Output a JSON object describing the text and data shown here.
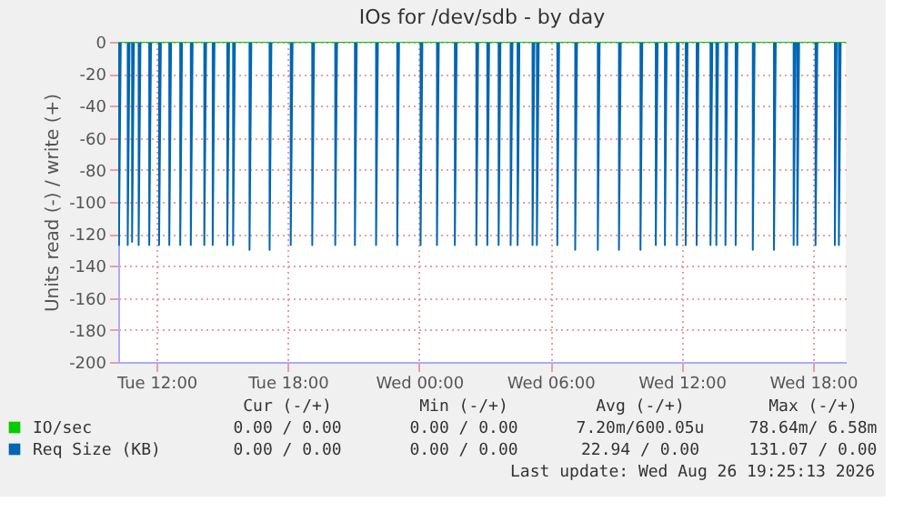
{
  "chart_data": {
    "type": "line",
    "title": "IOs for /dev/sdb - by day",
    "ylabel": "Units read (-) / write (+)",
    "xlim": [
      "2026-08-25T10:15",
      "2026-08-26T19:30"
    ],
    "xticks": [
      {
        "value": "2026-08-25T12:00",
        "label": "Tue 12:00"
      },
      {
        "value": "2026-08-25T18:00",
        "label": "Tue 18:00"
      },
      {
        "value": "2026-08-26T00:00",
        "label": "Wed 00:00"
      },
      {
        "value": "2026-08-26T06:00",
        "label": "Wed 06:00"
      },
      {
        "value": "2026-08-26T12:00",
        "label": "Wed 12:00"
      },
      {
        "value": "2026-08-26T18:00",
        "label": "Wed 18:00"
      }
    ],
    "ylim": [
      -200,
      0
    ],
    "yticks": [
      -200,
      -180,
      -160,
      -140,
      -120,
      -100,
      -80,
      -60,
      -40,
      -20,
      0
    ],
    "grid": true,
    "legend": "bottom",
    "annotations": [
      "Cur (-/+)",
      "Min (-/+)",
      "Avg (-/+)",
      "Max (-/+)",
      "0.00 / 0.00",
      "0.00 / 0.00",
      "7.20m/600.05u",
      "78.64m/ 6.58m",
      "0.00 / 0.00",
      "0.00 / 0.00",
      "22.94 / 0.00",
      "131.07 / 0.00",
      "Last update: Wed Aug 26 19:25:13 2026"
    ],
    "series": [
      {
        "name": "IO/sec",
        "color": "#00cc00",
        "x": [
          "2026-08-25T10:15",
          "2026-08-26T19:30"
        ],
        "values": [
          0,
          0
        ]
      },
      {
        "name": "Req Size (KB)",
        "color": "#0066b3",
        "x": [
          "2026-08-25T10:15",
          "2026-08-25T10:17",
          "2026-08-25T10:17",
          "2026-08-25T10:22",
          "2026-08-25T10:41",
          "2026-08-25T10:41",
          "2026-08-25T10:46",
          "2026-08-25T10:53",
          "2026-08-25T10:53",
          "2026-08-25T10:58",
          "2026-08-25T11:11",
          "2026-08-25T11:11",
          "2026-08-25T11:16",
          "2026-08-25T11:40",
          "2026-08-25T11:40",
          "2026-08-25T11:45",
          "2026-08-25T12:07",
          "2026-08-25T12:07",
          "2026-08-25T12:12",
          "2026-08-25T12:35",
          "2026-08-25T12:35",
          "2026-08-25T12:40",
          "2026-08-25T13:05",
          "2026-08-25T13:05",
          "2026-08-25T13:10",
          "2026-08-25T13:34",
          "2026-08-25T13:34",
          "2026-08-25T13:39",
          "2026-08-25T14:11",
          "2026-08-25T14:11",
          "2026-08-25T14:16",
          "2026-08-25T14:34",
          "2026-08-25T14:34",
          "2026-08-25T14:39",
          "2026-08-25T15:14",
          "2026-08-25T15:14",
          "2026-08-25T15:19",
          "2026-08-25T15:30",
          "2026-08-25T15:30",
          "2026-08-25T15:35",
          "2026-08-25T16:15",
          "2026-08-25T16:15",
          "2026-08-25T16:20",
          "2026-08-25T17:10",
          "2026-08-25T17:10",
          "2026-08-25T17:15",
          "2026-08-25T18:08",
          "2026-08-25T18:08",
          "2026-08-25T18:13",
          "2026-08-25T19:07",
          "2026-08-25T19:07",
          "2026-08-25T19:12",
          "2026-08-25T20:10",
          "2026-08-25T20:10",
          "2026-08-25T20:15",
          "2026-08-25T21:04",
          "2026-08-25T21:04",
          "2026-08-25T21:09",
          "2026-08-25T22:02",
          "2026-08-25T22:02",
          "2026-08-25T22:07",
          "2026-08-25T23:00",
          "2026-08-25T23:00",
          "2026-08-25T23:05",
          "2026-08-26T00:04",
          "2026-08-26T00:04",
          "2026-08-26T00:09",
          "2026-08-26T00:49",
          "2026-08-26T00:49",
          "2026-08-26T00:54",
          "2026-08-26T01:38",
          "2026-08-26T01:38",
          "2026-08-26T01:43",
          "2026-08-26T02:37",
          "2026-08-26T02:37",
          "2026-08-26T02:42",
          "2026-08-26T03:07",
          "2026-08-26T03:07",
          "2026-08-26T03:12",
          "2026-08-26T03:38",
          "2026-08-26T03:38",
          "2026-08-26T03:43",
          "2026-08-26T04:11",
          "2026-08-26T04:11",
          "2026-08-26T04:16",
          "2026-08-26T04:30",
          "2026-08-26T04:30",
          "2026-08-26T04:35",
          "2026-08-26T05:11",
          "2026-08-26T05:11",
          "2026-08-26T05:16",
          "2026-08-26T05:23",
          "2026-08-26T05:23",
          "2026-08-26T05:28",
          "2026-08-26T06:19",
          "2026-08-26T06:19",
          "2026-08-26T06:24",
          "2026-08-26T07:08",
          "2026-08-26T07:08",
          "2026-08-26T07:13",
          "2026-08-26T08:10",
          "2026-08-26T08:10",
          "2026-08-26T08:15",
          "2026-08-26T09:08",
          "2026-08-26T09:08",
          "2026-08-26T09:13",
          "2026-08-26T10:07",
          "2026-08-26T10:07",
          "2026-08-26T10:12",
          "2026-08-26T10:49",
          "2026-08-26T10:49",
          "2026-08-26T10:54",
          "2026-08-26T11:14",
          "2026-08-26T11:14",
          "2026-08-26T11:19",
          "2026-08-26T11:47",
          "2026-08-26T11:47",
          "2026-08-26T11:52",
          "2026-08-26T12:11",
          "2026-08-26T12:11",
          "2026-08-26T12:16",
          "2026-08-26T12:41",
          "2026-08-26T12:41",
          "2026-08-26T12:46",
          "2026-08-26T13:19",
          "2026-08-26T13:19",
          "2026-08-26T13:24",
          "2026-08-26T13:35",
          "2026-08-26T13:35",
          "2026-08-26T13:40",
          "2026-08-26T14:00",
          "2026-08-26T14:00",
          "2026-08-26T14:05",
          "2026-08-26T14:28",
          "2026-08-26T14:28",
          "2026-08-26T14:33",
          "2026-08-26T15:15",
          "2026-08-26T15:15",
          "2026-08-26T15:20",
          "2026-08-26T16:13",
          "2026-08-26T16:13",
          "2026-08-26T16:18",
          "2026-08-26T17:07",
          "2026-08-26T17:07",
          "2026-08-26T17:12",
          "2026-08-26T17:17",
          "2026-08-26T17:17",
          "2026-08-26T17:22",
          "2026-08-26T18:07",
          "2026-08-26T18:07",
          "2026-08-26T18:12",
          "2026-08-26T19:00",
          "2026-08-26T19:00",
          "2026-08-26T19:05",
          "2026-08-26T19:11",
          "2026-08-26T19:11",
          "2026-08-26T19:16",
          "2026-08-26T19:30"
        ],
        "values": [
          0,
          0,
          -127,
          0,
          0,
          -127,
          0,
          0,
          -125,
          0,
          0,
          -127,
          0,
          0,
          -127,
          0,
          0,
          -127,
          0,
          0,
          -127,
          0,
          0,
          -127,
          0,
          0,
          -127,
          0,
          0,
          -127,
          0,
          0,
          -127,
          0,
          0,
          -127,
          0,
          0,
          -127,
          0,
          0,
          -130,
          0,
          0,
          -130,
          0,
          0,
          -127,
          0,
          0,
          -127,
          0,
          0,
          -127,
          0,
          0,
          -127,
          0,
          0,
          -127,
          0,
          0,
          -127,
          0,
          0,
          -127,
          0,
          0,
          -127,
          0,
          0,
          -127,
          0,
          0,
          -127,
          0,
          0,
          -127,
          0,
          0,
          -127,
          0,
          0,
          -127,
          0,
          0,
          -127,
          0,
          0,
          -127,
          0,
          0,
          -127,
          0,
          0,
          -127,
          0,
          0,
          -130,
          0,
          0,
          -130,
          0,
          0,
          -130,
          0,
          0,
          -130,
          0,
          0,
          -127,
          0,
          0,
          -127,
          0,
          0,
          -127,
          0,
          0,
          -127,
          0,
          0,
          -127,
          0,
          0,
          -127,
          0,
          0,
          -127,
          0,
          0,
          -127,
          0,
          0,
          -127,
          0,
          0,
          -130,
          0,
          0,
          -130,
          0,
          0,
          -127,
          0,
          0,
          -127,
          0,
          0,
          -127,
          0,
          0,
          -127,
          0,
          0,
          -127,
          0,
          0
        ]
      }
    ]
  }
}
